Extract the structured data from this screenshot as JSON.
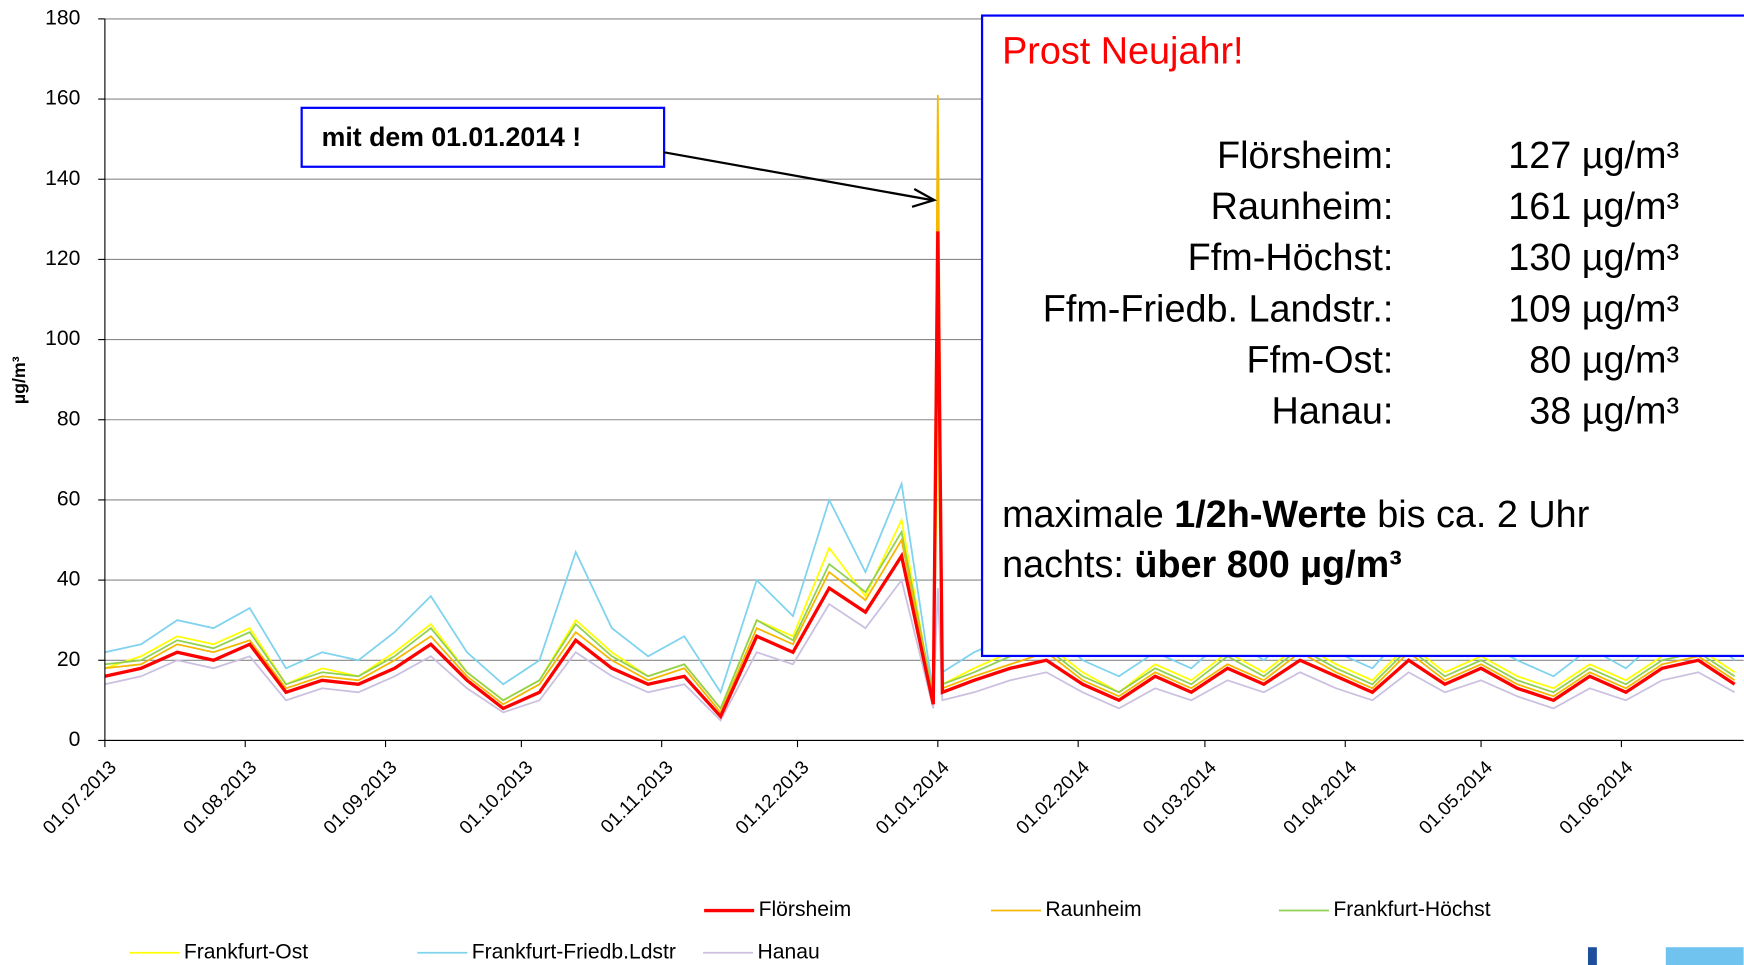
{
  "chart_data": {
    "type": "line",
    "y_label": "µg/m³",
    "x": [
      "01.07.2013",
      "09.07.2013",
      "17.07.2013",
      "25.07.2013",
      "02.08.2013",
      "10.08.2013",
      "18.08.2013",
      "26.08.2013",
      "03.09.2013",
      "11.09.2013",
      "19.09.2013",
      "27.09.2013",
      "05.10.2013",
      "13.10.2013",
      "21.10.2013",
      "29.10.2013",
      "06.11.2013",
      "14.11.2013",
      "22.11.2013",
      "30.11.2013",
      "08.12.2013",
      "16.12.2013",
      "24.12.2013",
      "31.12.2013",
      "01.01.2014",
      "02.01.2014",
      "09.01.2014",
      "17.01.2014",
      "25.01.2014",
      "02.02.2014",
      "10.02.2014",
      "18.02.2014",
      "26.02.2014",
      "06.03.2014",
      "14.03.2014",
      "22.03.2014",
      "30.03.2014",
      "07.04.2014",
      "15.04.2014",
      "23.04.2014",
      "01.05.2014",
      "09.05.2014",
      "17.05.2014",
      "25.05.2014",
      "02.06.2014",
      "10.06.2014",
      "18.06.2014",
      "26.06.2014"
    ],
    "series": [
      {
        "name": "Flörsheim",
        "color": "#ff0000",
        "values": [
          16,
          18,
          22,
          20,
          24,
          12,
          15,
          14,
          18,
          24,
          15,
          8,
          12,
          25,
          18,
          14,
          16,
          6,
          26,
          22,
          38,
          32,
          46,
          9,
          127,
          12,
          15,
          18,
          20,
          14,
          10,
          16,
          12,
          18,
          14,
          20,
          16,
          12,
          20,
          14,
          18,
          13,
          10,
          16,
          12,
          18,
          20,
          14
        ]
      },
      {
        "name": "Raunheim",
        "color": "#f5b800",
        "values": [
          18,
          19,
          24,
          22,
          25,
          13,
          16,
          15,
          20,
          26,
          16,
          9,
          14,
          27,
          20,
          15,
          18,
          7,
          28,
          24,
          42,
          35,
          50,
          10,
          161,
          13,
          16,
          19,
          22,
          15,
          11,
          17,
          13,
          19,
          15,
          22,
          17,
          13,
          22,
          15,
          19,
          14,
          11,
          17,
          13,
          19,
          21,
          15
        ]
      },
      {
        "name": "Frankfurt-Höchst",
        "color": "#92d050",
        "values": [
          19,
          20,
          25,
          23,
          27,
          14,
          17,
          16,
          21,
          28,
          17,
          10,
          15,
          29,
          21,
          16,
          19,
          8,
          30,
          25,
          44,
          37,
          52,
          11,
          130,
          14,
          17,
          21,
          23,
          16,
          12,
          18,
          14,
          21,
          16,
          23,
          18,
          14,
          23,
          16,
          20,
          15,
          12,
          18,
          14,
          20,
          22,
          16
        ]
      },
      {
        "name": "Frankfurt-Ost",
        "color": "#ffff00",
        "values": [
          18,
          21,
          26,
          24,
          28,
          14,
          18,
          16,
          22,
          29,
          17,
          10,
          15,
          30,
          22,
          16,
          19,
          8,
          30,
          26,
          48,
          36,
          55,
          10,
          80,
          14,
          18,
          22,
          24,
          17,
          12,
          19,
          15,
          22,
          17,
          24,
          19,
          15,
          24,
          17,
          21,
          16,
          13,
          19,
          15,
          21,
          23,
          17
        ]
      },
      {
        "name": "Frankfurt-Friedb.Ldstr",
        "color": "#7fd3ee",
        "values": [
          22,
          24,
          30,
          28,
          33,
          18,
          22,
          20,
          27,
          36,
          22,
          14,
          20,
          47,
          28,
          21,
          26,
          12,
          40,
          31,
          60,
          42,
          64,
          12,
          109,
          17,
          22,
          26,
          28,
          20,
          16,
          22,
          18,
          26,
          20,
          28,
          22,
          18,
          28,
          21,
          25,
          20,
          16,
          23,
          18,
          26,
          28,
          20
        ]
      },
      {
        "name": "Hanau",
        "color": "#ccc0e0",
        "values": [
          14,
          16,
          20,
          18,
          21,
          10,
          13,
          12,
          16,
          21,
          13,
          7,
          10,
          22,
          16,
          12,
          14,
          5,
          22,
          19,
          34,
          28,
          40,
          8,
          38,
          10,
          12,
          15,
          17,
          12,
          8,
          13,
          10,
          15,
          12,
          17,
          13,
          10,
          17,
          12,
          15,
          11,
          8,
          13,
          10,
          15,
          17,
          12
        ]
      }
    ],
    "xlim": [
      "01.07.2013",
      "28.06.2014"
    ],
    "xticks": [
      "01.07.2013",
      "01.08.2013",
      "01.09.2013",
      "01.10.2013",
      "01.11.2013",
      "01.12.2013",
      "01.01.2014",
      "01.02.2014",
      "01.03.2014",
      "01.04.2014",
      "01.05.2014",
      "01.06.2014"
    ],
    "ylim": [
      0,
      180
    ],
    "yticks": [
      0,
      20,
      40,
      60,
      80,
      100,
      120,
      140,
      160,
      180
    ],
    "grid": true,
    "legend": "bottom",
    "annotation": "mit dem 01.01.2014 !",
    "info_box": {
      "title": "Prost Neujahr!",
      "rows": [
        {
          "label": "Flörsheim:",
          "value": "127 µg/m³"
        },
        {
          "label": "Raunheim:",
          "value": "161 µg/m³"
        },
        {
          "label": "Ffm-Höchst:",
          "value": "130 µg/m³"
        },
        {
          "label": "Ffm-Friedb. Landstr.:",
          "value": "109 µg/m³"
        },
        {
          "label": "Ffm-Ost:",
          "value": "80 µg/m³"
        },
        {
          "label": "Hanau:",
          "value": "38 µg/m³"
        }
      ],
      "note": [
        "maximale ",
        "1/2h-Werte",
        " bis ca. 2 Uhr",
        "nachts: ",
        "über 800 µg/m³"
      ]
    }
  }
}
